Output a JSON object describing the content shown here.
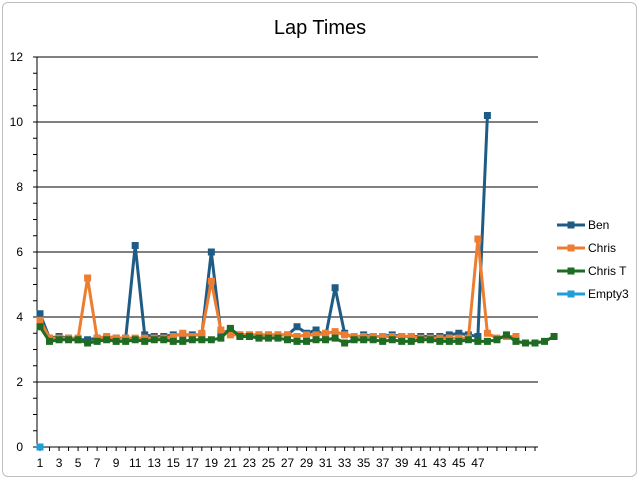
{
  "chart_data": {
    "type": "line",
    "title": "Lap Times",
    "xlabel": "",
    "ylabel": "",
    "ylim": [
      0,
      12
    ],
    "y_ticks": [
      0,
      2,
      4,
      6,
      8,
      10,
      12
    ],
    "x_range": [
      1,
      53
    ],
    "x_tick_labels": [
      "1",
      "3",
      "5",
      "7",
      "9",
      "11",
      "13",
      "15",
      "17",
      "19",
      "21",
      "23",
      "25",
      "27",
      "29",
      "31",
      "33",
      "35",
      "37",
      "39",
      "41",
      "43",
      "45",
      "47"
    ],
    "grid": "horizontal major gridlines",
    "legend_position": "right",
    "series": [
      {
        "name": "Ben",
        "color": "#1F5C85",
        "marker": "square",
        "values": [
          4.1,
          3.35,
          3.4,
          3.35,
          3.3,
          3.3,
          3.35,
          3.35,
          3.35,
          3.35,
          6.2,
          3.45,
          3.4,
          3.4,
          3.45,
          3.45,
          3.45,
          3.45,
          6.0,
          3.5,
          3.6,
          3.45,
          3.45,
          3.45,
          3.45,
          3.45,
          3.45,
          3.7,
          3.5,
          3.6,
          3.4,
          4.9,
          3.5,
          3.35,
          3.45,
          3.4,
          3.4,
          3.45,
          3.4,
          3.4,
          3.4,
          3.4,
          3.4,
          3.45,
          3.5,
          3.45,
          3.4,
          10.2
        ]
      },
      {
        "name": "Chris",
        "color": "#ED7D31",
        "marker": "square",
        "values": [
          3.9,
          3.35,
          3.35,
          3.35,
          3.35,
          5.2,
          3.35,
          3.4,
          3.35,
          3.35,
          3.35,
          3.35,
          3.35,
          3.35,
          3.4,
          3.5,
          3.4,
          3.5,
          5.1,
          3.6,
          3.45,
          3.45,
          3.45,
          3.45,
          3.45,
          3.45,
          3.45,
          3.4,
          3.45,
          3.45,
          3.5,
          3.55,
          3.45,
          3.4,
          3.4,
          3.4,
          3.4,
          3.4,
          3.4,
          3.4,
          3.35,
          3.35,
          3.35,
          3.35,
          3.35,
          3.35,
          6.4,
          3.5,
          3.35,
          3.4,
          3.4
        ]
      },
      {
        "name": "Chris T",
        "color": "#1E6B23",
        "marker": "square",
        "values": [
          3.7,
          3.25,
          3.3,
          3.3,
          3.3,
          3.2,
          3.25,
          3.3,
          3.25,
          3.25,
          3.3,
          3.25,
          3.3,
          3.3,
          3.25,
          3.25,
          3.3,
          3.3,
          3.3,
          3.35,
          3.65,
          3.4,
          3.4,
          3.35,
          3.35,
          3.35,
          3.3,
          3.25,
          3.25,
          3.3,
          3.3,
          3.35,
          3.2,
          3.3,
          3.3,
          3.3,
          3.25,
          3.3,
          3.25,
          3.25,
          3.3,
          3.3,
          3.25,
          3.25,
          3.25,
          3.3,
          3.25,
          3.25,
          3.3,
          3.45,
          3.25,
          3.2,
          3.2,
          3.25,
          3.4
        ]
      },
      {
        "name": "Empty3",
        "color": "#1EA0D6",
        "marker": "square",
        "values": [
          0
        ]
      }
    ]
  }
}
